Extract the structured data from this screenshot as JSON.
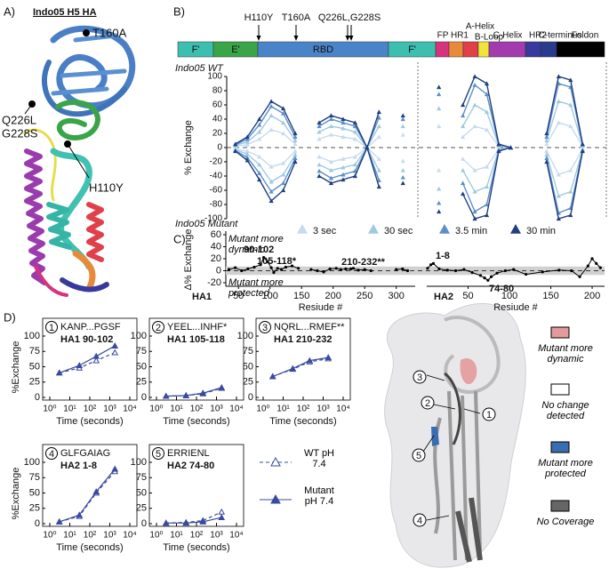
{
  "panel_labels": [
    "A)",
    "B)",
    "C)",
    "D)"
  ],
  "structure_a": {
    "title": "Indo05 H5 HA",
    "callouts": [
      "T160A",
      "Q226L",
      "G228S",
      "H110Y"
    ]
  },
  "domain_bar": {
    "mutations": [
      "H110Y",
      "T160A",
      "Q226L,G228S"
    ],
    "ha1": [
      {
        "name": "F'",
        "color": "#3dbfb0"
      },
      {
        "name": "E'",
        "color": "#3aa548"
      },
      {
        "name": "RBD",
        "color": "#4a84c8"
      },
      {
        "name": "F'",
        "color": "#3dbfb0"
      }
    ],
    "ha2": [
      {
        "name": "FP",
        "color": "#d6337e"
      },
      {
        "name": "HR1",
        "color": "#e88a3a"
      },
      {
        "name": "A-Helix",
        "color": "#e0404a"
      },
      {
        "name": "B-Loop",
        "color": "#f0e43a"
      },
      {
        "name": "C-Helix",
        "color": "#a23cae"
      },
      {
        "name": "HR2",
        "color": "#38399e"
      },
      {
        "name": "C-terminus",
        "color": "#2a3a8e"
      },
      {
        "name": "Foldon",
        "color": "#000000"
      }
    ]
  },
  "chart_data": [
    {
      "type": "line",
      "y_label": "% Exchange",
      "annotations": [
        "Indo05 WT",
        "Indo05 Mutant"
      ],
      "ylim": [
        -100,
        100
      ],
      "yticks": [
        -100,
        -80,
        -60,
        -40,
        -20,
        0,
        20,
        40,
        60,
        80,
        100
      ],
      "categories": [
        null,
        null,
        null,
        null,
        null,
        null,
        null,
        null,
        null,
        null,
        null,
        null,
        null,
        null,
        null,
        null,
        null,
        null,
        null,
        null,
        null,
        null,
        null,
        null,
        null,
        null,
        null,
        null,
        null,
        null
      ],
      "series": [
        {
          "name": "3 sec",
          "color": "#c6dbef",
          "values": [
            2,
            4,
            12,
            25,
            20,
            5,
            null,
            12,
            18,
            15,
            12,
            0,
            15,
            null,
            18,
            null,
            null,
            30,
            null,
            15,
            30,
            25,
            2,
            0,
            null,
            null,
            5,
            35,
            30,
            2
          ],
          "mutant_values": [
            -2,
            -5,
            -13,
            -27,
            -22,
            -5,
            null,
            -13,
            -20,
            -16,
            -13,
            0,
            -16,
            null,
            -19,
            null,
            null,
            -32,
            null,
            -16,
            -32,
            -27,
            -2,
            0,
            null,
            null,
            -5,
            -38,
            -32,
            -2
          ]
        },
        {
          "name": "30 sec",
          "color": "#9ecae1",
          "values": [
            3,
            8,
            22,
            45,
            35,
            10,
            null,
            22,
            30,
            27,
            22,
            0,
            30,
            null,
            30,
            null,
            null,
            55,
            null,
            30,
            60,
            50,
            3,
            0,
            null,
            null,
            10,
            65,
            60,
            3
          ],
          "mutant_values": [
            -3,
            -9,
            -24,
            -48,
            -38,
            -10,
            null,
            -24,
            -32,
            -28,
            -24,
            0,
            -32,
            null,
            -32,
            null,
            null,
            -58,
            null,
            -32,
            -62,
            -55,
            -3,
            0,
            null,
            null,
            -10,
            -68,
            -62,
            -3
          ]
        },
        {
          "name": "3.5 min",
          "color": "#5b8fc9",
          "values": [
            4,
            12,
            32,
            58,
            48,
            15,
            null,
            30,
            40,
            35,
            30,
            0,
            42,
            null,
            40,
            null,
            null,
            75,
            null,
            45,
            88,
            75,
            4,
            0,
            null,
            null,
            15,
            90,
            85,
            4
          ],
          "mutant_values": [
            -4,
            -14,
            -36,
            -62,
            -50,
            -15,
            null,
            -33,
            -43,
            -38,
            -33,
            0,
            -46,
            null,
            -42,
            null,
            null,
            -78,
            null,
            -50,
            -90,
            -80,
            -4,
            0,
            null,
            null,
            -15,
            -92,
            -85,
            -4
          ]
        },
        {
          "name": "30 min",
          "color": "#1f3f7f",
          "values": [
            5,
            15,
            40,
            65,
            55,
            20,
            null,
            35,
            45,
            40,
            35,
            0,
            50,
            null,
            45,
            null,
            null,
            85,
            null,
            60,
            100,
            90,
            5,
            0,
            null,
            null,
            20,
            100,
            95,
            5
          ],
          "mutant_values": [
            -5,
            -18,
            -45,
            -75,
            -60,
            -20,
            null,
            -40,
            -50,
            -45,
            -40,
            0,
            -55,
            null,
            -50,
            null,
            null,
            -90,
            null,
            -65,
            -100,
            -95,
            -5,
            0,
            null,
            null,
            -20,
            -100,
            -95,
            -5
          ]
        }
      ]
    },
    {
      "type": "line",
      "y_label": "Δ% Exchange",
      "x_label": "Resiude #",
      "ylim": [
        -20,
        60
      ],
      "yticks": [
        -20,
        0,
        20,
        40,
        60
      ],
      "band": [
        -7,
        7
      ],
      "annotations": [
        "Mutant more dynamic",
        "Mutant more protected"
      ],
      "highlights": [
        "90-102",
        "105-118*",
        "210-232**",
        "1-8",
        "74-80"
      ],
      "color": "#000000",
      "highlight_color": "#d62828",
      "panels": [
        {
          "label": "HA1",
          "xlim": [
            30,
            330
          ],
          "xticks": [
            50,
            100,
            150,
            200,
            250,
            300
          ],
          "x": [
            35,
            45,
            55,
            65,
            75,
            85,
            90,
            96,
            102,
            106,
            112,
            118,
            125,
            135,
            145,
            155,
            165,
            175,
            185,
            195,
            205,
            212,
            220,
            228,
            232,
            240,
            250,
            260,
            280,
            300,
            310,
            318
          ],
          "values": [
            2,
            5,
            0,
            3,
            6,
            10,
            22,
            15,
            5,
            -3,
            4,
            2,
            6,
            8,
            4,
            null,
            2,
            0,
            -2,
            3,
            4,
            2,
            3,
            3,
            4,
            1,
            2,
            0,
            null,
            2,
            3,
            0
          ]
        },
        {
          "label": "HA2",
          "xlim": [
            0,
            215
          ],
          "xticks": [
            50,
            100,
            150,
            200
          ],
          "x": [
            1,
            5,
            8,
            15,
            25,
            35,
            45,
            55,
            65,
            70,
            74,
            78,
            85,
            95,
            105,
            120,
            140,
            160,
            175,
            185,
            195,
            200,
            205,
            210
          ],
          "values": [
            4,
            10,
            12,
            3,
            1,
            0,
            2,
            -3,
            -8,
            -12,
            -16,
            -10,
            -4,
            0,
            2,
            -6,
            -2,
            1,
            0,
            -10,
            8,
            20,
            12,
            5
          ]
        }
      ]
    },
    {
      "type": "line",
      "id": "1",
      "title": "KANP...PGSF",
      "subtitle": "HA1 90-102",
      "xlog": true,
      "x_label": "Time (seconds)",
      "y_label": "%Exchange",
      "xlim": [
        1,
        10000
      ],
      "xticks": [
        {
          "value": 1,
          "label": "10⁰"
        },
        {
          "value": 10,
          "label": "10¹"
        },
        {
          "value": 100,
          "label": "10²"
        },
        {
          "value": 1000,
          "label": "10³"
        },
        {
          "value": 10000,
          "label": "10⁴"
        }
      ],
      "ylim": [
        0,
        100
      ],
      "yticks": [
        0,
        25,
        50,
        75,
        100
      ],
      "x": [
        3,
        30,
        210,
        1800
      ],
      "series": [
        {
          "color": "#3a4aa0",
          "style": "dashed",
          "values": [
            40,
            48,
            60,
            73
          ]
        },
        {
          "color": "#3a4aa0",
          "style": "solid",
          "values": [
            40,
            52,
            67,
            84
          ]
        }
      ]
    },
    {
      "type": "line",
      "id": "2",
      "title": "YEEL...INHF*",
      "subtitle": "HA1 105-118",
      "xlog": true,
      "x_label": "Time (seconds)",
      "xlim": [
        1,
        10000
      ],
      "xticks": [
        {
          "value": 1,
          "label": "10⁰"
        },
        {
          "value": 10,
          "label": "10¹"
        },
        {
          "value": 100,
          "label": "10²"
        },
        {
          "value": 1000,
          "label": "10³"
        },
        {
          "value": 10000,
          "label": "10⁴"
        }
      ],
      "ylim": [
        0,
        100
      ],
      "yticks": [
        0,
        25,
        50,
        75,
        100
      ],
      "x": [
        3,
        30,
        210,
        1800
      ],
      "series": [
        {
          "color": "#3a4aa0",
          "style": "dashed",
          "values": [
            2,
            3,
            6,
            15
          ]
        },
        {
          "color": "#3a4aa0",
          "style": "solid",
          "values": [
            2,
            3,
            7,
            16
          ]
        }
      ]
    },
    {
      "type": "line",
      "id": "3",
      "title": "NQRL...RMEF**",
      "subtitle": "HA1 210-232",
      "xlog": true,
      "x_label": "Time (seconds)",
      "xlim": [
        1,
        10000
      ],
      "xticks": [
        {
          "value": 1,
          "label": "10⁰"
        },
        {
          "value": 10,
          "label": "10¹"
        },
        {
          "value": 100,
          "label": "10²"
        },
        {
          "value": 1000,
          "label": "10³"
        },
        {
          "value": 10000,
          "label": "10⁴"
        }
      ],
      "ylim": [
        0,
        100
      ],
      "yticks": [
        0,
        25,
        50,
        75,
        100
      ],
      "x": [
        3,
        30,
        210,
        1800
      ],
      "series": [
        {
          "color": "#3a4aa0",
          "style": "dashed",
          "values": [
            34,
            46,
            58,
            63
          ]
        },
        {
          "color": "#3a4aa0",
          "style": "solid",
          "values": [
            34,
            47,
            60,
            65
          ]
        }
      ]
    },
    {
      "type": "line",
      "id": "4",
      "title": "GLFGAIAG",
      "subtitle": "HA2 1-8",
      "xlog": true,
      "x_label": "Time (seconds)",
      "y_label": "%Exchange",
      "xlim": [
        1,
        10000
      ],
      "xticks": [
        {
          "value": 1,
          "label": "10⁰"
        },
        {
          "value": 10,
          "label": "10¹"
        },
        {
          "value": 100,
          "label": "10²"
        },
        {
          "value": 1000,
          "label": "10³"
        },
        {
          "value": 10000,
          "label": "10⁴"
        }
      ],
      "ylim": [
        0,
        100
      ],
      "yticks": [
        0,
        25,
        50,
        75,
        100
      ],
      "x": [
        3,
        30,
        210,
        1800
      ],
      "series": [
        {
          "color": "#3a4aa0",
          "style": "dashed",
          "values": [
            3,
            12,
            50,
            85
          ]
        },
        {
          "color": "#3a4aa0",
          "style": "solid",
          "values": [
            3,
            14,
            52,
            89
          ]
        }
      ]
    },
    {
      "type": "line",
      "id": "5",
      "title": "ERRIENL",
      "subtitle": "HA2 74-80",
      "xlog": true,
      "x_label": "Time (seconds)",
      "xlim": [
        1,
        10000
      ],
      "xticks": [
        {
          "value": 1,
          "label": "10⁰"
        },
        {
          "value": 10,
          "label": "10¹"
        },
        {
          "value": 100,
          "label": "10²"
        },
        {
          "value": 1000,
          "label": "10³"
        },
        {
          "value": 10000,
          "label": "10⁴"
        }
      ],
      "ylim": [
        0,
        100
      ],
      "yticks": [
        0,
        25,
        50,
        75,
        100
      ],
      "x": [
        3,
        30,
        210,
        1800
      ],
      "series": [
        {
          "name": "WT pH 7.4",
          "color": "#3a4aa0",
          "style": "dashed",
          "values": [
            1,
            2,
            5,
            19
          ]
        },
        {
          "name": "Mutant pH 7.4",
          "color": "#3a4aa0",
          "style": "solid",
          "values": [
            1,
            1,
            3,
            10
          ]
        }
      ]
    }
  ],
  "structure_d": {
    "callouts": [
      "1",
      "2",
      "3",
      "4",
      "5"
    ],
    "legend": [
      "Mutant more dynamic",
      "No change detected",
      "Mutant more protected",
      "No Coverage"
    ]
  }
}
